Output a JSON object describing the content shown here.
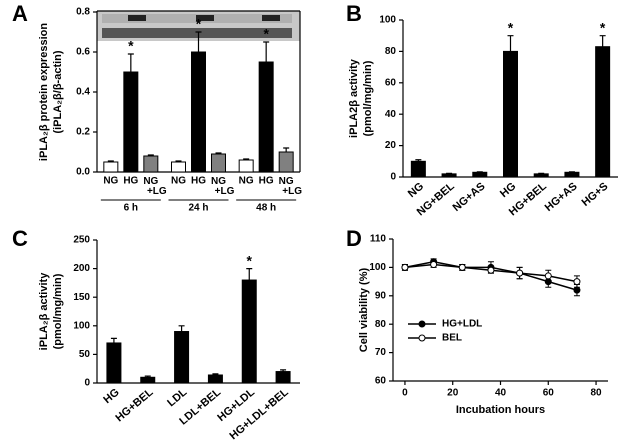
{
  "chart_data": [
    {
      "type": "bar",
      "panel": "A",
      "ylabel": [
        "iPLA₂β protein expression",
        "(iPLA₂β/β-actin)"
      ],
      "categories": [
        "6 h",
        "24 h",
        "48 h"
      ],
      "series": [
        {
          "name": "NG",
          "color": "#ffffff",
          "values": [
            0.05,
            0.05,
            0.06
          ],
          "errors": [
            0.005,
            0.005,
            0.005
          ]
        },
        {
          "name": "HG",
          "color": "#000000",
          "values": [
            0.5,
            0.6,
            0.55
          ],
          "errors": [
            0.09,
            0.1,
            0.1
          ]
        },
        {
          "name": "NG+LG",
          "color": "#808080",
          "values": [
            0.08,
            0.09,
            0.1
          ],
          "errors": [
            0.005,
            0.005,
            0.02
          ]
        }
      ],
      "ylim": [
        0,
        0.8
      ],
      "yticks": [
        {
          "value": 0,
          "label": "0.0"
        },
        0.2,
        0.4,
        0.6,
        0.8
      ],
      "annotations": [
        {
          "text": "*",
          "series": 1,
          "category": 0
        },
        {
          "text": "*",
          "series": 1,
          "category": 1
        },
        {
          "text": "*",
          "series": 1,
          "category": 2
        }
      ]
    },
    {
      "type": "bar",
      "panel": "B",
      "ylabel": [
        "iPLA2β activity",
        "(pmol/mg/min)"
      ],
      "categories": [
        "NG",
        "NG+BEL",
        "NG+AS",
        "HG",
        "HG+BEL",
        "HG+AS",
        "HG+S"
      ],
      "values": [
        10,
        2,
        3,
        80,
        2,
        3,
        83
      ],
      "errors": [
        1,
        0.3,
        0.3,
        10,
        0.3,
        0.3,
        7
      ],
      "color": "#000000",
      "ylim": [
        0,
        100
      ],
      "yticks": [
        0,
        20,
        40,
        60,
        80,
        100
      ],
      "annotations": [
        {
          "text": "*",
          "category": 3
        },
        {
          "text": "*",
          "category": 6
        }
      ]
    },
    {
      "type": "bar",
      "panel": "C",
      "ylabel": [
        "iPLA₂β activity",
        "(pmol/mg/min)"
      ],
      "categories": [
        "HG",
        "HG+BEL",
        "LDL",
        "LDL+BEL",
        "HG+LDL",
        "HG+LDL+BEL"
      ],
      "values": [
        70,
        10,
        90,
        14,
        180,
        20
      ],
      "errors": [
        8,
        2,
        10,
        2,
        20,
        3
      ],
      "color": "#000000",
      "ylim": [
        0,
        250
      ],
      "yticks": [
        0,
        50,
        100,
        150,
        200,
        250
      ],
      "annotations": [
        {
          "text": "*",
          "category": 4
        }
      ]
    },
    {
      "type": "line",
      "panel": "D",
      "xlabel": "Incubation hours",
      "ylabel": [
        "Cell viability (%)"
      ],
      "x": [
        0,
        12,
        24,
        36,
        48,
        60,
        72
      ],
      "series": [
        {
          "name": "HG+LDL",
          "color": "#000000",
          "marker_fill": "#000000",
          "values": [
            100,
            102,
            100,
            100,
            98,
            95,
            92
          ],
          "errors": [
            1,
            1,
            1,
            2,
            2,
            2,
            2
          ]
        },
        {
          "name": "BEL",
          "color": "#000000",
          "marker_fill": "#ffffff",
          "values": [
            100,
            101,
            100,
            99,
            98,
            97,
            95
          ],
          "errors": [
            1,
            1,
            1,
            1,
            2,
            2,
            2
          ]
        }
      ],
      "xlim": [
        -5,
        85
      ],
      "xticks": [
        0,
        20,
        40,
        60,
        80
      ],
      "ylim": [
        60,
        110
      ],
      "yticks": [
        60,
        70,
        80,
        90,
        100,
        110
      ],
      "legend": "lower left"
    }
  ]
}
